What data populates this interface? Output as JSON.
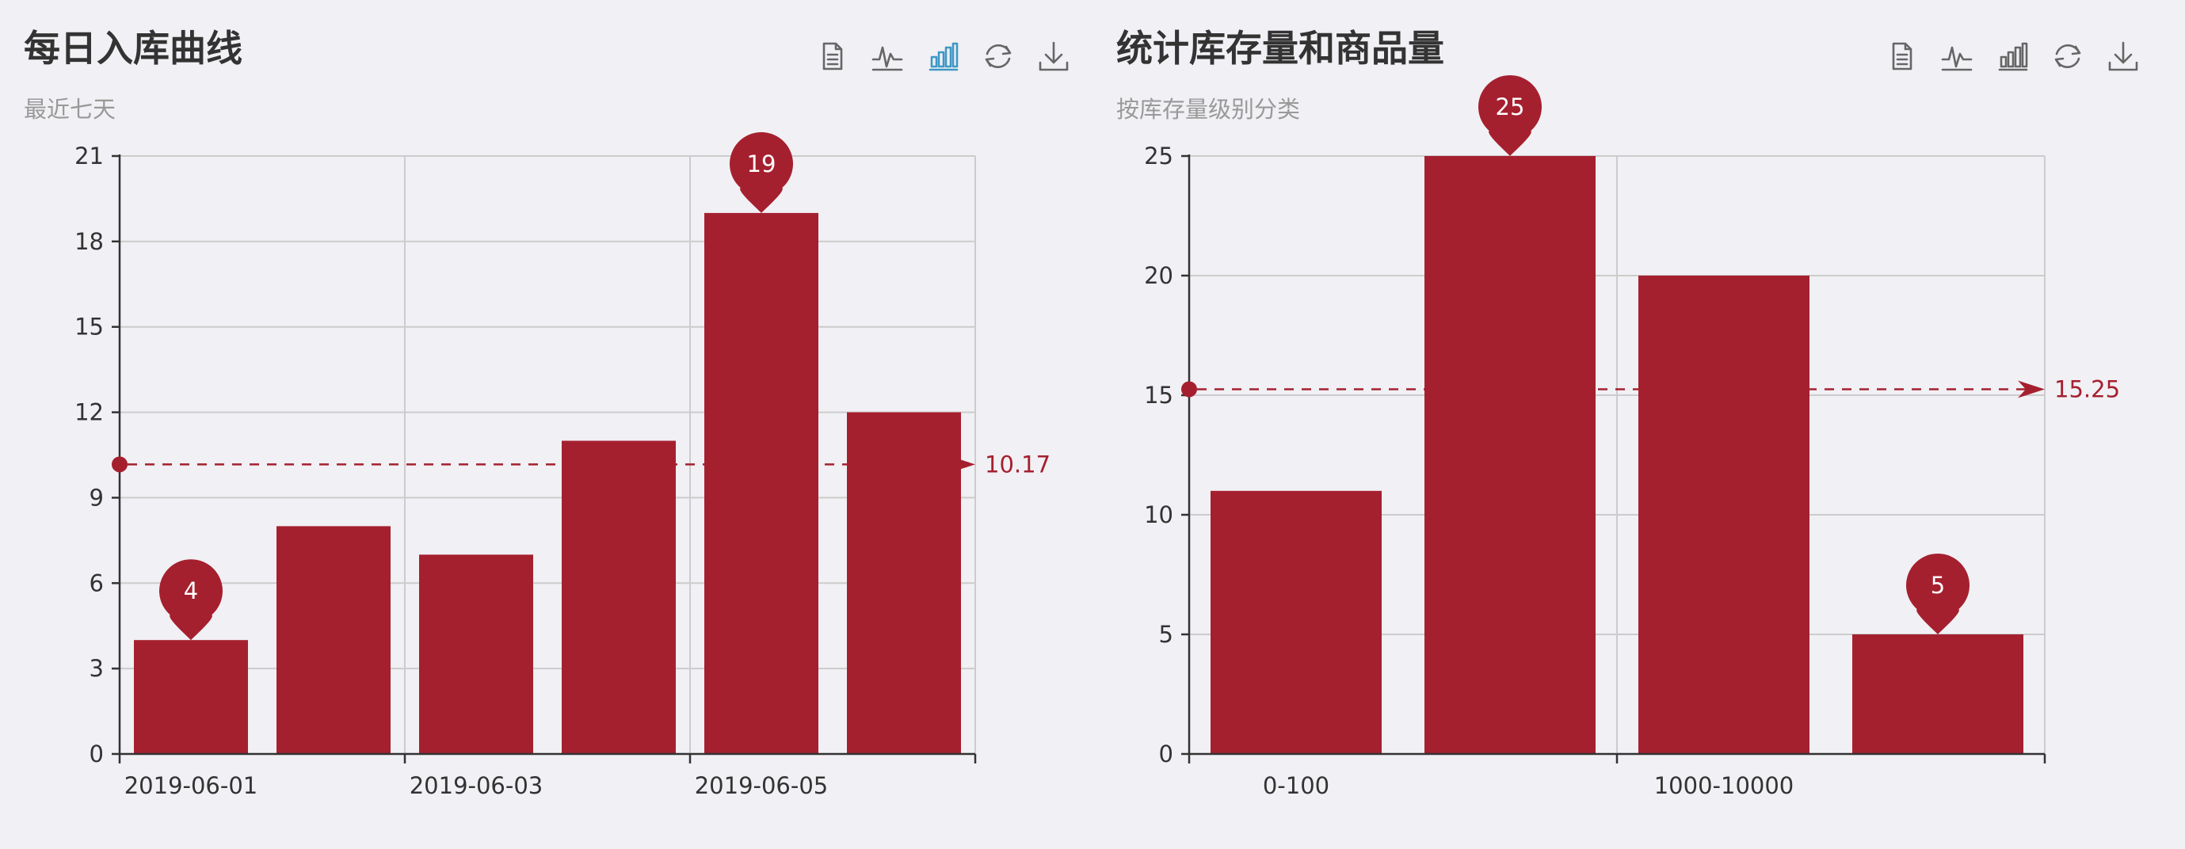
{
  "charts": [
    {
      "title": "每日入库曲线",
      "subtitle": "最近七天",
      "toolbox": [
        {
          "icon": "data-view-icon"
        },
        {
          "icon": "line-chart-icon"
        },
        {
          "icon": "bar-chart-icon",
          "active": true
        },
        {
          "icon": "restore-icon"
        },
        {
          "icon": "save-image-icon"
        }
      ],
      "chart_data": {
        "type": "bar",
        "categories": [
          "2019-06-01",
          "",
          "2019-06-03",
          "",
          "2019-06-05",
          ""
        ],
        "values": [
          4,
          8,
          7,
          11,
          19,
          12
        ],
        "ylim": [
          0,
          21
        ],
        "yticks": [
          0,
          3,
          6,
          9,
          12,
          15,
          18,
          21
        ],
        "x_tick_labels": [
          "2019-06-01",
          "2019-06-03",
          "2019-06-05"
        ],
        "mark_points": [
          {
            "index": 0,
            "value": 4
          },
          {
            "index": 4,
            "value": 19
          }
        ],
        "mark_line": {
          "value": 10.17,
          "label": "10.17"
        },
        "grid": true,
        "title": "每日入库曲线",
        "subtitle": "最近七天"
      }
    },
    {
      "title": "统计库存量和商品量",
      "subtitle": "按库存量级别分类",
      "toolbox": [
        {
          "icon": "data-view-icon"
        },
        {
          "icon": "line-chart-icon"
        },
        {
          "icon": "bar-chart-icon",
          "active": false
        },
        {
          "icon": "restore-icon"
        },
        {
          "icon": "save-image-icon"
        }
      ],
      "chart_data": {
        "type": "bar",
        "categories": [
          "0-100",
          "",
          "1000-10000",
          ""
        ],
        "values": [
          11,
          25,
          20,
          5
        ],
        "ylim": [
          0,
          25
        ],
        "yticks": [
          0,
          5,
          10,
          15,
          20,
          25
        ],
        "x_tick_labels": [
          "0-100",
          "1000-10000"
        ],
        "mark_points": [
          {
            "index": 1,
            "value": 25
          },
          {
            "index": 3,
            "value": 5
          }
        ],
        "mark_line": {
          "value": 15.25,
          "label": "15.25"
        },
        "grid": true,
        "title": "统计库存量和商品量",
        "subtitle": "按库存量级别分类"
      }
    }
  ],
  "colors": {
    "bar": "#a5202f",
    "mark": "#a5202f",
    "axis": "#333333",
    "grid": "#cccccc",
    "title": "#333333",
    "subtitle": "#999999",
    "icon": "#666666",
    "icon_active": "#3e98c5"
  }
}
